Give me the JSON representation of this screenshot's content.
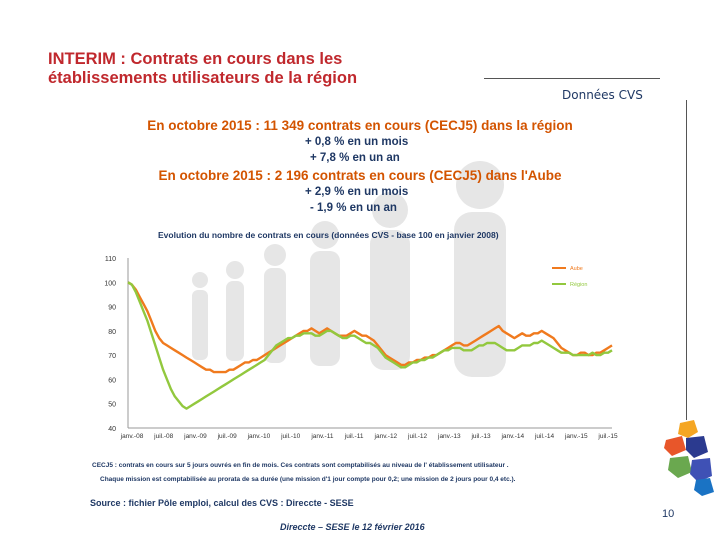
{
  "slide": {
    "title": "INTERIM : Contrats en cours dans les établissements utilisateurs de la région",
    "data_label": "Données CVS",
    "headline_region": "En octobre 2015 : 11 349 contrats en cours (CECJ5) dans la région",
    "region_month": "+ 0,8 % en un mois",
    "region_year": "+ 7,8 % en un an",
    "headline_aube": "En octobre 2015 : 2 196 contrats en cours (CECJ5) dans l'Aube",
    "aube_month": "+ 2,9 % en un mois",
    "aube_year": "- 1,9 % en un an",
    "note_1": "CECJ5 : contrats en cours sur 5 jours ouvrés en fin de mois. Ces contrats sont comptabilisés au niveau de l' établissement utilisateur .",
    "note_2": "Chaque mission est comptabilisée au prorata de sa durée (une mission d'1 jour compte pour 0,2; une mission de 2 jours pour 0,4 etc.).",
    "source": "Source : fichier Pôle emploi, calcul des CVS : Direccte - SESE",
    "footer": "Direccte – SESE le 12 février 2016",
    "page_number": "10"
  },
  "colors": {
    "title": "#c0282d",
    "headline": "#d35400",
    "text": "#1f3864",
    "aube_series": "#f07a1e",
    "region_series": "#92c83e"
  },
  "chart_data": {
    "type": "line",
    "title": "Evolution du nombre de contrats en cours (données CVS - base 100 en janvier 2008)",
    "ylim": [
      40,
      110
    ],
    "yticks": [
      "110",
      "100",
      "90",
      "80",
      "70",
      "60",
      "50",
      "40"
    ],
    "xtick_labels": [
      "janv.-08",
      "juil.-08",
      "janv.-09",
      "juil.-09",
      "janv.-10",
      "juil.-10",
      "janv.-11",
      "juil.-11",
      "janv.-12",
      "juil.-12",
      "janv.-13",
      "juil.-13",
      "janv.-14",
      "juil.-14",
      "janv.-15",
      "juil.-15"
    ],
    "legend_position": "right",
    "series": [
      {
        "name": "Aube",
        "values": [
          100,
          99,
          97,
          94,
          91,
          88,
          84,
          80,
          77,
          75,
          74,
          73,
          72,
          71,
          70,
          69,
          68,
          67,
          66,
          65,
          64,
          64,
          63,
          63,
          63,
          63,
          64,
          64,
          65,
          66,
          67,
          67,
          68,
          68,
          69,
          70,
          71,
          72,
          73,
          74,
          75,
          76,
          77,
          78,
          79,
          80,
          80,
          81,
          80,
          79,
          80,
          81,
          80,
          79,
          78,
          78,
          78,
          79,
          80,
          79,
          78,
          78,
          77,
          76,
          74,
          72,
          70,
          69,
          68,
          67,
          66,
          66,
          67,
          67,
          68,
          68,
          69,
          69,
          70,
          70,
          71,
          72,
          73,
          74,
          75,
          75,
          74,
          74,
          75,
          76,
          77,
          78,
          79,
          80,
          81,
          82,
          80,
          79,
          78,
          77,
          78,
          79,
          78,
          78,
          79,
          79,
          80,
          79,
          78,
          77,
          75,
          73,
          72,
          71,
          70,
          70,
          71,
          71,
          70,
          70,
          71,
          71,
          72,
          73,
          74
        ]
      },
      {
        "name": "Région",
        "values": [
          100,
          99,
          96,
          92,
          88,
          84,
          79,
          74,
          69,
          64,
          60,
          56,
          53,
          51,
          49,
          48,
          49,
          50,
          51,
          52,
          53,
          54,
          55,
          56,
          57,
          58,
          59,
          60,
          61,
          62,
          63,
          64,
          65,
          66,
          67,
          68,
          70,
          72,
          74,
          75,
          76,
          77,
          77,
          78,
          78,
          79,
          79,
          79,
          78,
          78,
          79,
          80,
          80,
          79,
          78,
          77,
          77,
          78,
          78,
          77,
          76,
          75,
          75,
          74,
          73,
          71,
          69,
          68,
          67,
          66,
          65,
          65,
          66,
          67,
          67,
          68,
          68,
          69,
          69,
          70,
          71,
          72,
          72,
          73,
          73,
          73,
          72,
          72,
          72,
          73,
          74,
          74,
          75,
          75,
          75,
          74,
          73,
          72,
          72,
          72,
          73,
          74,
          74,
          74,
          75,
          75,
          76,
          75,
          74,
          73,
          72,
          71,
          71,
          71,
          70,
          70,
          70,
          70,
          70,
          71,
          70,
          70,
          71,
          71,
          72
        ]
      }
    ]
  }
}
